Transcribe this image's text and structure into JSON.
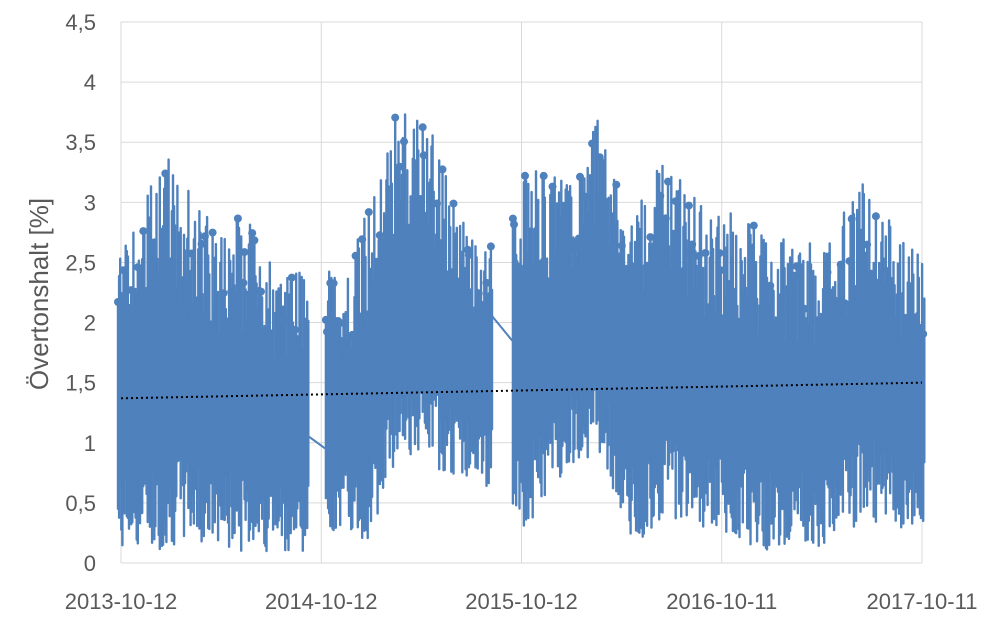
{
  "chart_data": {
    "type": "line",
    "title": "",
    "xlabel": "",
    "ylabel": "Övertonshalt [%]",
    "ylim": [
      0,
      4.5
    ],
    "grid": true,
    "legend": "none",
    "x_tick_labels": [
      "2013-10-12",
      "2014-10-12",
      "2015-10-12",
      "2016-10-11",
      "2017-10-11"
    ],
    "y_tick_labels": [
      "0",
      "0,5",
      "1",
      "1,5",
      "2",
      "2,5",
      "3",
      "3,5",
      "4",
      "4,5"
    ],
    "y_ticks": [
      0,
      0.5,
      1,
      1.5,
      2,
      2.5,
      3,
      3.5,
      4,
      4.5
    ],
    "series_color": "#4F81BD",
    "trendline": {
      "color": "#000000",
      "style": "dotted",
      "start": 1.37,
      "end": 1.5
    },
    "series": [
      {
        "x": [
          "2013-10-12",
          "2014-01-01",
          "2014-02-20",
          "2014-04-01",
          "2014-06-01",
          "2014-08-01",
          "2014-10-01",
          "2014-11-20",
          "2015-01-01",
          "2015-03-01",
          "2015-05-01",
          "2015-07-01",
          "2015-09-01",
          "2015-10-20",
          "2016-01-01",
          "2016-03-01",
          "2016-05-01",
          "2016-07-01",
          "2016-09-01",
          "2016-11-01",
          "2017-01-01",
          "2017-03-01",
          "2017-05-01",
          "2017-07-01",
          "2017-09-01",
          "2017-10-11"
        ],
        "upper": [
          2.6,
          3.4,
          3.1,
          2.8,
          2.9,
          2.3,
          2.8,
          2.3,
          2.9,
          3.8,
          3.6,
          2.8,
          2.6,
          3.3,
          3.2,
          3.7,
          2.9,
          3.4,
          3.0,
          2.9,
          2.8,
          2.6,
          2.8,
          3.2,
          2.7,
          2.6
        ],
        "lower": [
          0.1,
          0.1,
          0.2,
          0.1,
          0.1,
          0.1,
          0.1,
          0.3,
          0.1,
          0.9,
          0.8,
          0.7,
          0.6,
          0.2,
          0.8,
          0.9,
          0.1,
          0.4,
          0.3,
          0.2,
          0.1,
          0.2,
          0.1,
          0.4,
          0.2,
          0.3
        ]
      }
    ]
  }
}
